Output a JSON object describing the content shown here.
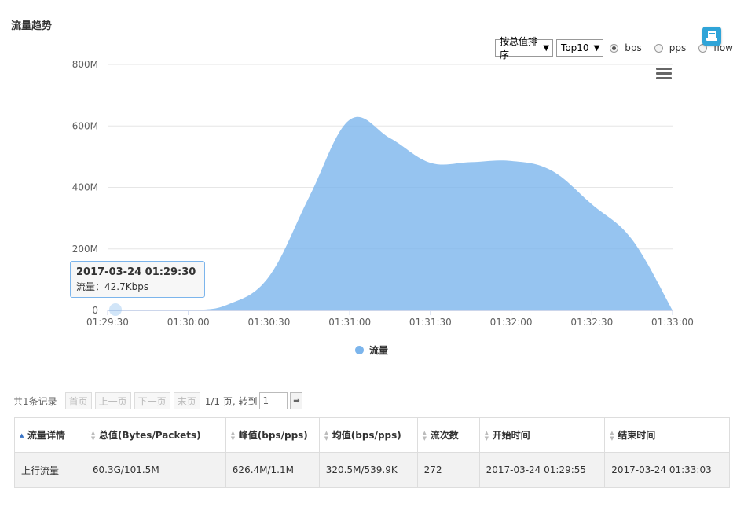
{
  "panel": {
    "title": "流量趋势"
  },
  "controls": {
    "sort_select": "按总值排序",
    "top_select": "Top10",
    "radios": [
      {
        "label": "bps",
        "checked": true
      },
      {
        "label": "pps",
        "checked": false
      },
      {
        "label": "flow",
        "checked": false
      }
    ]
  },
  "icons": {
    "export": "save-icon",
    "menu": "hamburger-menu-icon"
  },
  "tooltip": {
    "time": "2017-03-24 01:29:30",
    "text": "流量：42.7Kbps"
  },
  "chart_data": {
    "type": "area",
    "yticks": [
      "0",
      "200M",
      "400M",
      "600M",
      "800M"
    ],
    "ylim": [
      0,
      800
    ],
    "y_unit": "M",
    "xticks": [
      "01:29:30",
      "01:30:00",
      "01:30:30",
      "01:31:00",
      "01:31:30",
      "01:32:00",
      "01:32:30",
      "01:33:00"
    ],
    "series": [
      {
        "name": "流量",
        "color": "#7cb5ec",
        "x": [
          "01:29:30",
          "01:30:00",
          "01:30:15",
          "01:30:30",
          "01:30:45",
          "01:31:00",
          "01:31:15",
          "01:31:30",
          "01:31:45",
          "01:32:00",
          "01:32:15",
          "01:32:30",
          "01:32:45",
          "01:33:00"
        ],
        "values": [
          0.04,
          0.5,
          20,
          110,
          370,
          620,
          560,
          480,
          482,
          486,
          455,
          345,
          230,
          0
        ]
      }
    ],
    "legend_position": "bottom-center",
    "grid": true
  },
  "pagination": {
    "total": "共1条记录",
    "first": "首页",
    "prev": "上一页",
    "next": "下一页",
    "last": "末页",
    "info": "1/1 页, 转到",
    "goto_value": "1"
  },
  "table": {
    "headers": [
      "流量详情",
      "总值(Bytes/Packets)",
      "峰值(bps/pps)",
      "均值(bps/pps)",
      "流次数",
      "开始时间",
      "结束时间"
    ],
    "rows": [
      [
        "上行流量",
        "60.3G/101.5M",
        "626.4M/1.1M",
        "320.5M/539.9K",
        "272",
        "2017-03-24 01:29:55",
        "2017-03-24 01:33:03"
      ]
    ]
  }
}
